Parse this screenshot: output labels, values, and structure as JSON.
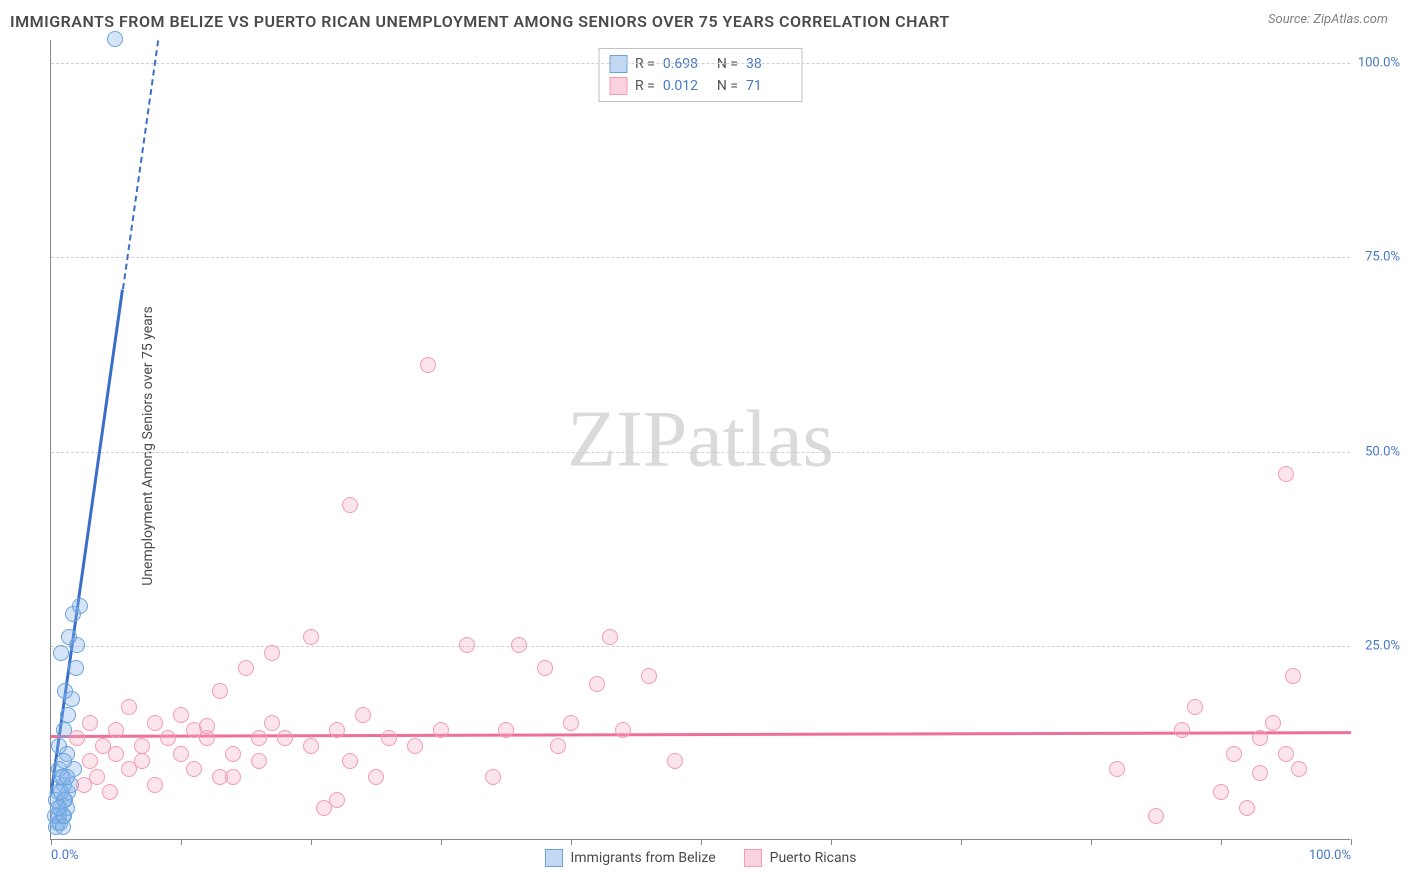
{
  "title": "IMMIGRANTS FROM BELIZE VS PUERTO RICAN UNEMPLOYMENT AMONG SENIORS OVER 75 YEARS CORRELATION CHART",
  "source": "Source: ZipAtlas.com",
  "ylabel": "Unemployment Among Seniors over 75 years",
  "watermark_a": "ZIP",
  "watermark_b": "atlas",
  "chart": {
    "type": "scatter",
    "xlim": [
      0,
      100
    ],
    "ylim": [
      0,
      103
    ],
    "x_axis_label_min": "0.0%",
    "x_axis_label_max": "100.0%",
    "xtick_positions": [
      0,
      10,
      20,
      30,
      40,
      50,
      60,
      70,
      80,
      90,
      100
    ],
    "yticks": [
      {
        "value": 25,
        "label": "25.0%"
      },
      {
        "value": 50,
        "label": "50.0%"
      },
      {
        "value": 75,
        "label": "75.0%"
      },
      {
        "value": 100,
        "label": "100.0%"
      }
    ],
    "grid_color": "#d0d0d0",
    "background_color": "#ffffff",
    "series": [
      {
        "name": "Immigrants from Belize",
        "color_fill": "rgba(135,180,232,0.35)",
        "color_stroke": "#6aa3df",
        "line_color": "#3a6fc9",
        "marker_radius": 8,
        "R": "0.698",
        "N": "38",
        "regression": {
          "x1": 0,
          "y1": 6,
          "x2": 8.2,
          "y2": 103,
          "solid_until_x": 5.5
        },
        "points": [
          [
            4.9,
            103
          ],
          [
            0.5,
            2
          ],
          [
            0.6,
            3
          ],
          [
            0.7,
            4
          ],
          [
            0.9,
            3
          ],
          [
            1.0,
            5
          ],
          [
            1.2,
            4
          ],
          [
            1.0,
            7
          ],
          [
            1.3,
            6
          ],
          [
            0.8,
            8
          ],
          [
            1.5,
            7
          ],
          [
            0.4,
            1.5
          ],
          [
            1.2,
            11
          ],
          [
            1.8,
            9
          ],
          [
            0.6,
            12
          ],
          [
            1.0,
            14
          ],
          [
            1.3,
            16
          ],
          [
            1.6,
            18
          ],
          [
            1.1,
            19
          ],
          [
            1.9,
            22
          ],
          [
            0.8,
            24
          ],
          [
            2.0,
            25
          ],
          [
            1.4,
            26
          ],
          [
            1.7,
            29
          ],
          [
            2.2,
            30
          ],
          [
            0.3,
            3
          ],
          [
            0.5,
            6
          ],
          [
            0.4,
            5
          ],
          [
            0.7,
            2
          ],
          [
            0.9,
            1.5
          ],
          [
            0.6,
            9
          ],
          [
            1.0,
            3
          ],
          [
            1.1,
            5
          ],
          [
            0.5,
            4
          ],
          [
            0.8,
            6
          ],
          [
            0.9,
            8
          ],
          [
            1.0,
            10
          ],
          [
            1.2,
            8
          ]
        ]
      },
      {
        "name": "Puerto Ricans",
        "color_fill": "rgba(244,165,190,0.3)",
        "color_stroke": "#f29bb7",
        "line_color": "#ed6f9a",
        "marker_radius": 8,
        "R": "0.012",
        "N": "71",
        "regression": {
          "x1": 0,
          "y1": 13.5,
          "x2": 100,
          "y2": 14.0
        },
        "points": [
          [
            2,
            13
          ],
          [
            3,
            10
          ],
          [
            4,
            12
          ],
          [
            3.5,
            8
          ],
          [
            5,
            11
          ],
          [
            5,
            14
          ],
          [
            6,
            9
          ],
          [
            7,
            12
          ],
          [
            8,
            15
          ],
          [
            7,
            10
          ],
          [
            9,
            13
          ],
          [
            10,
            11
          ],
          [
            10,
            16
          ],
          [
            11,
            9
          ],
          [
            12,
            13
          ],
          [
            13,
            19
          ],
          [
            14,
            11
          ],
          [
            15,
            22
          ],
          [
            12,
            14.5
          ],
          [
            16,
            10
          ],
          [
            17,
            24
          ],
          [
            17,
            15
          ],
          [
            18,
            13
          ],
          [
            13,
            8
          ],
          [
            20,
            12
          ],
          [
            20,
            26
          ],
          [
            21,
            4
          ],
          [
            22,
            14
          ],
          [
            23,
            10
          ],
          [
            24,
            16
          ],
          [
            25,
            8
          ],
          [
            23,
            43
          ],
          [
            26,
            13
          ],
          [
            28,
            12
          ],
          [
            22,
            5
          ],
          [
            29,
            61
          ],
          [
            30,
            14
          ],
          [
            32,
            25
          ],
          [
            34,
            8
          ],
          [
            35,
            14
          ],
          [
            36,
            25
          ],
          [
            38,
            22
          ],
          [
            39,
            12
          ],
          [
            42,
            20
          ],
          [
            43,
            26
          ],
          [
            44,
            14
          ],
          [
            46,
            21
          ],
          [
            40,
            15
          ],
          [
            48,
            10
          ],
          [
            82,
            9
          ],
          [
            85,
            3
          ],
          [
            87,
            14
          ],
          [
            88,
            17
          ],
          [
            90,
            6
          ],
          [
            91,
            11
          ],
          [
            92,
            4
          ],
          [
            93,
            8.5
          ],
          [
            93,
            13
          ],
          [
            94,
            15
          ],
          [
            95,
            47
          ],
          [
            95,
            11
          ],
          [
            95.5,
            21
          ],
          [
            96,
            9
          ],
          [
            2.5,
            7
          ],
          [
            3,
            15
          ],
          [
            4.5,
            6
          ],
          [
            6,
            17
          ],
          [
            8,
            7
          ],
          [
            11,
            14
          ],
          [
            14,
            8
          ],
          [
            16,
            13
          ]
        ]
      }
    ]
  },
  "legend_bottom": [
    {
      "label": "Immigrants from Belize",
      "swatch": "blue"
    },
    {
      "label": "Puerto Ricans",
      "swatch": "pink"
    }
  ]
}
